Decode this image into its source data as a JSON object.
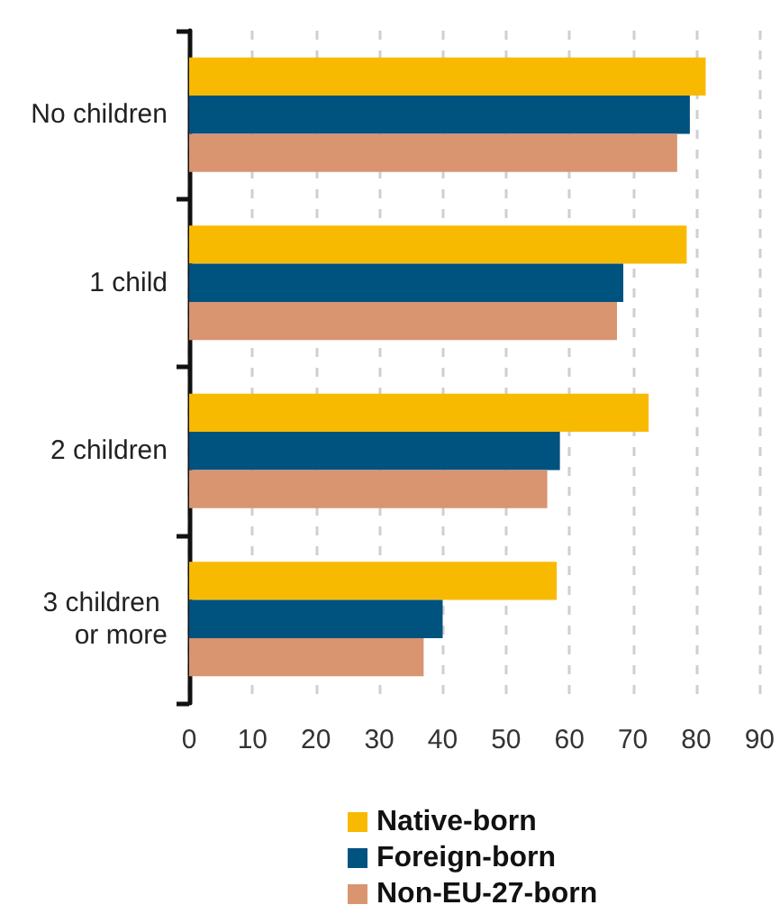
{
  "chart_data": {
    "type": "bar",
    "orientation": "horizontal",
    "categories": [
      "No children",
      "1 child",
      "2 children",
      "3 children or more"
    ],
    "series": [
      {
        "name": "Native-born",
        "color": "#f8ba00",
        "values": [
          81.5,
          78.5,
          72.5,
          58
        ]
      },
      {
        "name": "Foreign-born",
        "color": "#00527f",
        "values": [
          79,
          68.5,
          58.5,
          40
        ]
      },
      {
        "name": "Non-EU-27-born",
        "color": "#d99470",
        "values": [
          77,
          67.5,
          56.5,
          37
        ]
      }
    ],
    "xlim": [
      0,
      90
    ],
    "xticks": [
      0,
      10,
      20,
      30,
      40,
      50,
      60,
      70,
      80,
      90
    ],
    "grid": "x",
    "legend": "bottom"
  }
}
